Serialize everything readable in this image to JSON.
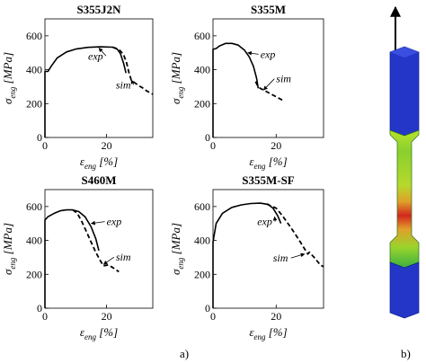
{
  "figure_labels": {
    "a": "a)",
    "b": "b)"
  },
  "chart_data": [
    {
      "type": "line",
      "title": "S355J2N",
      "xlabel_sym": "ε",
      "xlabel_sub": "eng",
      "xlabel_unit": "[%]",
      "ylabel_sym": "σ",
      "ylabel_sub": "eng",
      "ylabel_unit": "[MPa]",
      "xlim": [
        0,
        35
      ],
      "ylim": [
        0,
        700
      ],
      "xticks": [
        0,
        20
      ],
      "yticks": [
        0,
        200,
        400,
        600
      ],
      "series": [
        {
          "name": "exp",
          "style": "solid",
          "x": [
            0,
            0,
            1,
            2,
            4,
            7,
            10,
            14,
            18,
            22,
            23.5,
            24.5,
            25.5,
            26.3
          ],
          "y": [
            0,
            390,
            390,
            420,
            470,
            505,
            522,
            532,
            535,
            533,
            520,
            495,
            440,
            380
          ]
        },
        {
          "name": "sim",
          "style": "dashed",
          "x": [
            22,
            24,
            25.5,
            26.5,
            27.3,
            28,
            29,
            30.5,
            31.5,
            33,
            35
          ],
          "y": [
            533,
            520,
            490,
            440,
            380,
            340,
            325,
            305,
            295,
            275,
            255
          ]
        }
      ],
      "annotations": [
        {
          "text": "exp",
          "x": 14,
          "y": 460,
          "arrow_x": 17.5,
          "arrow_y": 528
        },
        {
          "text": "sim",
          "x": 23,
          "y": 290,
          "arrow_x": 28,
          "arrow_y": 340
        }
      ]
    },
    {
      "type": "line",
      "title": "S355M",
      "xlabel_sym": "ε",
      "xlabel_sub": "eng",
      "xlabel_unit": "[%]",
      "ylabel_sym": "σ",
      "ylabel_sub": "eng",
      "ylabel_unit": "[MPa]",
      "xlim": [
        0,
        35
      ],
      "ylim": [
        0,
        700
      ],
      "xticks": [
        0,
        20
      ],
      "yticks": [
        0,
        200,
        400,
        600
      ],
      "series": [
        {
          "name": "exp",
          "style": "solid",
          "x": [
            0,
            0,
            1,
            2,
            4,
            6,
            8,
            10,
            11.5,
            12.8,
            13.8,
            14.3
          ],
          "y": [
            0,
            520,
            525,
            540,
            555,
            555,
            545,
            515,
            475,
            420,
            350,
            290
          ]
        },
        {
          "name": "sim",
          "style": "dashed",
          "x": [
            13.5,
            14,
            14.5,
            15.5,
            16.5,
            18,
            20,
            22
          ],
          "y": [
            330,
            310,
            295,
            285,
            275,
            260,
            240,
            220
          ]
        }
      ],
      "annotations": [
        {
          "text": "exp",
          "x": 15,
          "y": 470,
          "arrow_x": 11,
          "arrow_y": 500
        },
        {
          "text": "sim",
          "x": 20,
          "y": 325,
          "arrow_x": 16,
          "arrow_y": 280
        }
      ]
    },
    {
      "type": "line",
      "title": "S460M",
      "xlabel_sym": "ε",
      "xlabel_sub": "eng",
      "xlabel_unit": "[%]",
      "ylabel_sym": "σ",
      "ylabel_sub": "eng",
      "ylabel_unit": "[MPa]",
      "xlim": [
        0,
        35
      ],
      "ylim": [
        0,
        700
      ],
      "xticks": [
        0,
        20
      ],
      "yticks": [
        0,
        200,
        400,
        600
      ],
      "series": [
        {
          "name": "exp",
          "style": "solid",
          "x": [
            0,
            0,
            1,
            3,
            5,
            7,
            9,
            11,
            13,
            15,
            16.5,
            17.5
          ],
          "y": [
            0,
            520,
            540,
            560,
            575,
            580,
            580,
            570,
            540,
            480,
            410,
            340
          ]
        },
        {
          "name": "sim",
          "style": "dashed",
          "x": [
            9,
            10.5,
            12,
            13.5,
            15,
            16.5,
            18,
            19,
            20.5,
            22,
            24
          ],
          "y": [
            580,
            560,
            510,
            450,
            390,
            330,
            280,
            250,
            255,
            240,
            215
          ]
        }
      ],
      "annotations": [
        {
          "text": "exp",
          "x": 20,
          "y": 490,
          "arrow_x": 15,
          "arrow_y": 500
        },
        {
          "text": "sim",
          "x": 23,
          "y": 280,
          "arrow_x": 19,
          "arrow_y": 258
        }
      ]
    },
    {
      "type": "line",
      "title": "S355M-SF",
      "xlabel_sym": "ε",
      "xlabel_sub": "eng",
      "xlabel_unit": "[%]",
      "ylabel_sym": "σ",
      "ylabel_sub": "eng",
      "ylabel_unit": "[MPa]",
      "xlim": [
        0,
        35
      ],
      "ylim": [
        0,
        700
      ],
      "xticks": [
        0,
        20
      ],
      "yticks": [
        0,
        200,
        400,
        600
      ],
      "series": [
        {
          "name": "exp",
          "style": "solid",
          "x": [
            0,
            0,
            1,
            3,
            6,
            9,
            12,
            15,
            17.5,
            19,
            20.5,
            21.5
          ],
          "y": [
            0,
            390,
            500,
            560,
            595,
            610,
            618,
            620,
            612,
            590,
            545,
            500
          ]
        },
        {
          "name": "sim",
          "style": "dashed",
          "x": [
            17,
            20,
            22,
            24.5,
            27,
            29,
            30,
            30.5,
            32,
            34,
            35
          ],
          "y": [
            615,
            590,
            545,
            480,
            410,
            350,
            320,
            330,
            300,
            255,
            245
          ]
        }
      ],
      "annotations": [
        {
          "text": "exp",
          "x": 14,
          "y": 490,
          "arrow_x": 19.5,
          "arrow_y": 540
        },
        {
          "text": "sim",
          "x": 19,
          "y": 275,
          "arrow_x": 29,
          "arrow_y": 320
        }
      ]
    }
  ]
}
